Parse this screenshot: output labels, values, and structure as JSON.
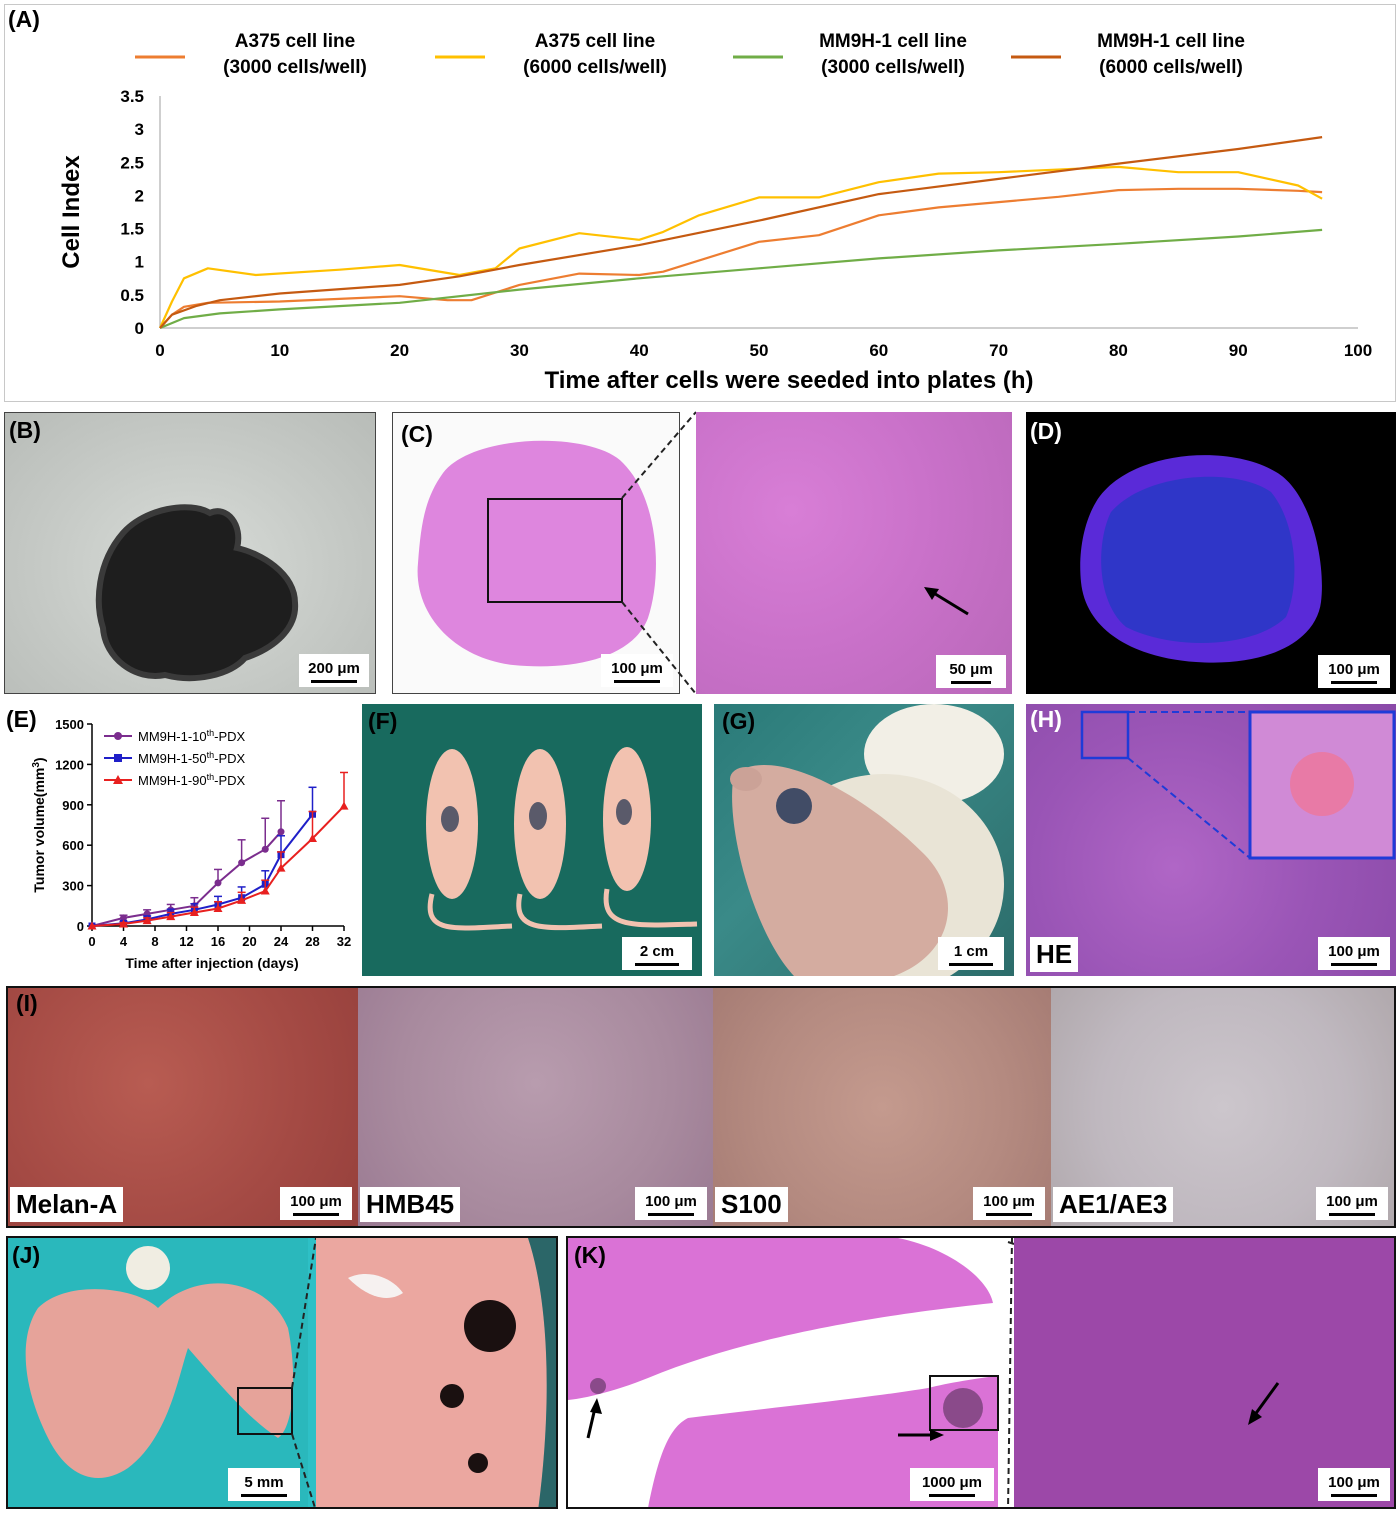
{
  "panels": {
    "A": "(A)",
    "B": "(B)",
    "C": "(C)",
    "D": "(D)",
    "E": "(E)",
    "F": "(F)",
    "G": "(G)",
    "H": "(H)",
    "I": "(I)",
    "J": "(J)",
    "K": "(K)"
  },
  "scalebars": {
    "B": "200 μm",
    "C_left": "100 μm",
    "C_right": "50 μm",
    "D": "100 μm",
    "F": "2 cm",
    "G": "1 cm",
    "H": "100 μm",
    "I1": "100 μm",
    "I2": "100 μm",
    "I3": "100 μm",
    "I4": "100 μm",
    "J": "5 mm",
    "K_left": "1000 μm",
    "K_right": "100 μm"
  },
  "stains": {
    "H": "HE",
    "I": [
      "Melan-A",
      "HMB45",
      "S100",
      "AE1/AE3"
    ]
  },
  "chart_data": [
    {
      "type": "line",
      "xlabel": "Time after cells were seeded into plates (h)",
      "ylabel": "Cell Index",
      "xlim": [
        0,
        100
      ],
      "ylim": [
        0,
        3.5
      ],
      "xticks": [
        "0",
        "10",
        "20",
        "30",
        "40",
        "50",
        "60",
        "70",
        "80",
        "90",
        "100"
      ],
      "yticks": [
        "0",
        "0.5",
        "1",
        "1.5",
        "2",
        "2.5",
        "3",
        "3.5"
      ],
      "legend_position": "top",
      "series": [
        {
          "name": "A375 cell line (3000 cells/well)",
          "line1": "A375 cell line",
          "line2": "(3000 cells/well)",
          "color": "#ed7d31",
          "x": [
            0,
            1,
            2,
            4,
            10,
            20,
            24,
            26,
            30,
            35,
            40,
            42,
            50,
            55,
            60,
            65,
            70,
            75,
            80,
            85,
            90,
            95,
            97
          ],
          "y": [
            0,
            0.2,
            0.32,
            0.38,
            0.4,
            0.48,
            0.42,
            0.42,
            0.65,
            0.82,
            0.8,
            0.85,
            1.3,
            1.4,
            1.7,
            1.82,
            1.9,
            1.98,
            2.08,
            2.1,
            2.1,
            2.07,
            2.05
          ]
        },
        {
          "name": "A375 cell line (6000 cells/well)",
          "line1": "A375 cell line",
          "line2": "(6000 cells/well)",
          "color": "#ffc000",
          "x": [
            0,
            1,
            2,
            4,
            8,
            15,
            20,
            25,
            28,
            30,
            35,
            40,
            42,
            45,
            50,
            55,
            60,
            65,
            70,
            80,
            85,
            90,
            95,
            97
          ],
          "y": [
            0,
            0.4,
            0.75,
            0.9,
            0.8,
            0.88,
            0.95,
            0.8,
            0.9,
            1.2,
            1.43,
            1.33,
            1.45,
            1.7,
            1.97,
            1.97,
            2.2,
            2.33,
            2.35,
            2.43,
            2.35,
            2.35,
            2.15,
            1.95
          ]
        },
        {
          "name": "MM9H-1 cell line (3000 cells/well)",
          "line1": "MM9H-1 cell line",
          "line2": "(3000 cells/well)",
          "color": "#70ad47",
          "x": [
            0,
            2,
            5,
            10,
            20,
            30,
            40,
            50,
            60,
            70,
            80,
            90,
            97
          ],
          "y": [
            0,
            0.15,
            0.22,
            0.28,
            0.38,
            0.58,
            0.75,
            0.9,
            1.05,
            1.17,
            1.27,
            1.38,
            1.48
          ]
        },
        {
          "name": "MM9H-1 cell line (6000 cells/well)",
          "line1": "MM9H-1 cell line",
          "line2": "(6000 cells/well)",
          "color": "#c55a11",
          "x": [
            0,
            1,
            3,
            5,
            10,
            20,
            25,
            30,
            40,
            50,
            60,
            70,
            80,
            90,
            97
          ],
          "y": [
            0,
            0.2,
            0.33,
            0.42,
            0.52,
            0.65,
            0.78,
            0.95,
            1.25,
            1.62,
            2.02,
            2.25,
            2.48,
            2.7,
            2.88
          ]
        }
      ]
    },
    {
      "type": "line",
      "xlabel": "Time after injection (days)",
      "ylabel": "Tumor volume(mm",
      "ylabel_sup": "3",
      "ylabel_end": ")",
      "xlim": [
        0,
        32
      ],
      "ylim": [
        0,
        1500
      ],
      "xticks": [
        "0",
        "4",
        "8",
        "12",
        "16",
        "20",
        "24",
        "28",
        "32"
      ],
      "yticks": [
        "0",
        "300",
        "600",
        "900",
        "1200",
        "1500"
      ],
      "legend_position": "top-left",
      "series": [
        {
          "name": "MM9H-1-10th-PDX",
          "pre": "MM9H-1-10",
          "sup": "th",
          "post": "-PDX",
          "color": "#7b2d8e",
          "marker": "circle",
          "x": [
            0,
            4,
            7,
            10,
            13,
            16,
            19,
            22,
            24
          ],
          "y": [
            0,
            60,
            90,
            120,
            150,
            320,
            470,
            570,
            700
          ],
          "err": [
            0,
            20,
            30,
            40,
            60,
            100,
            170,
            230,
            230
          ]
        },
        {
          "name": "MM9H-1-50th-PDX",
          "pre": "MM9H-1-50",
          "sup": "th",
          "post": "-PDX",
          "color": "#1f1fc8",
          "marker": "square",
          "x": [
            0,
            4,
            7,
            10,
            13,
            16,
            19,
            22,
            24,
            28
          ],
          "y": [
            0,
            20,
            50,
            90,
            120,
            160,
            210,
            310,
            530,
            830
          ],
          "err": [
            0,
            15,
            25,
            35,
            45,
            60,
            80,
            100,
            140,
            200
          ]
        },
        {
          "name": "MM9H-1-90th-PDX",
          "pre": "MM9H-1-90",
          "sup": "th",
          "post": "-PDX",
          "color": "#e8201f",
          "marker": "triangle",
          "x": [
            0,
            4,
            7,
            10,
            13,
            16,
            19,
            22,
            24,
            28,
            32
          ],
          "y": [
            0,
            15,
            40,
            70,
            100,
            130,
            190,
            260,
            430,
            650,
            890
          ],
          "err": [
            0,
            10,
            20,
            30,
            40,
            50,
            60,
            80,
            120,
            200,
            250
          ]
        }
      ]
    }
  ]
}
